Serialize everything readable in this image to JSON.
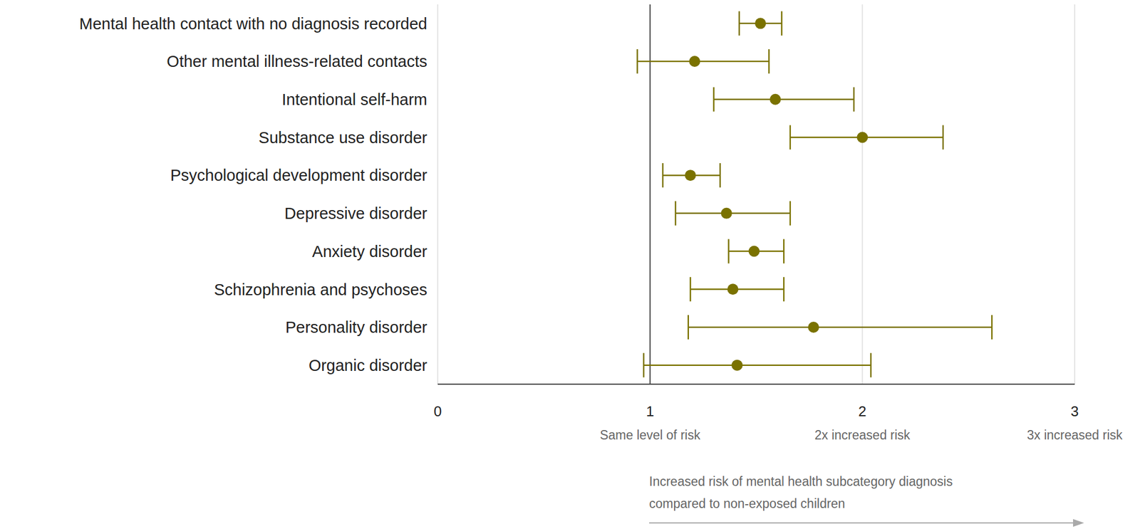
{
  "chart_data": {
    "type": "forest",
    "orientation": "horizontal",
    "categories": [
      "Mental health contact with no diagnosis recorded",
      "Other mental illness-related contacts",
      "Intentional self-harm",
      "Substance use disorder",
      "Psychological development disorder",
      "Depressive disorder",
      "Anxiety disorder",
      "Schizophrenia and psychoses",
      "Personality disorder",
      "Organic disorder"
    ],
    "values": [
      1.52,
      1.21,
      1.59,
      2.0,
      1.19,
      1.36,
      1.49,
      1.39,
      1.77,
      1.41
    ],
    "ci_lower": [
      1.42,
      0.94,
      1.3,
      1.66,
      1.06,
      1.12,
      1.37,
      1.19,
      1.18,
      0.97
    ],
    "ci_upper": [
      1.62,
      1.56,
      1.96,
      2.38,
      1.33,
      1.66,
      1.63,
      1.63,
      2.61,
      2.04
    ],
    "color": "#7a7200",
    "xlim": [
      0,
      3
    ],
    "xticks": [
      0,
      1,
      2,
      3
    ],
    "xtick_captions": [
      {
        "value": 1,
        "label": "Same level of risk"
      },
      {
        "value": 2,
        "label": "2x increased risk"
      },
      {
        "value": 3,
        "label": "3x increased risk"
      }
    ],
    "reference_line": 1,
    "x_label": "Increased risk of mental health subcategory diagnosis compared to non-exposed children",
    "grid": true,
    "marker": "circle"
  }
}
